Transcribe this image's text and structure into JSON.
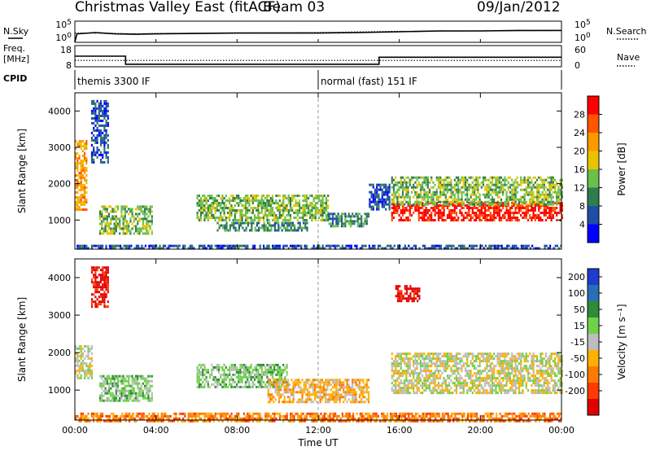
{
  "header": {
    "title": "Christmas Valley East (fitACF)",
    "beam": "Beam 03",
    "date": "09/Jan/2012"
  },
  "left_labels": {
    "nsky": "N.Sky",
    "freq": "Freq.",
    "freq_unit": "[MHz]",
    "cpid": "CPID"
  },
  "right_labels": {
    "nsearch": "N.Search",
    "nave": "Nave"
  },
  "cpid_modes": [
    {
      "label": "themis 3300 IF",
      "start_hour": 0
    },
    {
      "label": "normal (fast) 151 IF",
      "start_hour": 12
    }
  ],
  "colors": {
    "power_scale": [
      "#0000ff",
      "#1e4ea6",
      "#2e7d4f",
      "#6cbf4a",
      "#e8c400",
      "#ff9900",
      "#ff5500",
      "#ff0000"
    ],
    "velocity_scale": [
      "#1e3ccf",
      "#2a6fb5",
      "#2f8a3a",
      "#6fd14a",
      "#bdbdbd",
      "#ffb000",
      "#ff7a00",
      "#ff3a00",
      "#e00000"
    ]
  },
  "chart_data": [
    {
      "type": "line",
      "name": "noise",
      "y_ticks": [
        "10^5",
        "10^0"
      ],
      "y_ticks_right": [
        "10^5",
        "10^0"
      ],
      "series": [
        {
          "name": "N.Sky",
          "style": "solid",
          "x": [
            0.0,
            0.1,
            1.0,
            2.0,
            3.0,
            4.0,
            6.0,
            8.0,
            10.0,
            12.0,
            14.0,
            16.0,
            18.0,
            20.0,
            22.0,
            24.0
          ],
          "values": [
            0.1,
            2.0,
            2.3,
            2.0,
            1.9,
            2.0,
            2.1,
            2.2,
            2.2,
            2.2,
            2.3,
            2.5,
            2.7,
            2.7,
            2.8,
            2.8
          ]
        },
        {
          "name": "N.Search",
          "style": "dotted",
          "x": [
            0.0,
            1.0,
            3.0,
            4.0,
            8.0,
            12.0,
            16.0,
            20.0,
            24.0
          ],
          "values": [
            2.2,
            2.2,
            2.0,
            2.1,
            2.2,
            2.3,
            2.6,
            2.7,
            2.8
          ]
        }
      ]
    },
    {
      "type": "line",
      "name": "frequency",
      "y_ticks": [
        "18",
        "8"
      ],
      "y_ticks_right": [
        "60",
        "0"
      ],
      "series": [
        {
          "name": "Freq.",
          "style": "solid",
          "x": [
            0.0,
            2.5,
            2.5,
            15.0,
            15.0,
            24.0
          ],
          "values": [
            13.0,
            13.0,
            9.2,
            9.2,
            12.5,
            12.5
          ]
        },
        {
          "name": "Nave",
          "style": "dotted",
          "x": [
            0.0,
            24.0
          ],
          "values": [
            11.0,
            11.0
          ]
        }
      ]
    },
    {
      "type": "heatmap",
      "name": "power",
      "ylabel": "Slant Range [km]",
      "y_ticks": [
        1000,
        2000,
        3000,
        4000
      ],
      "ylim": [
        200,
        4500
      ],
      "colorbar_label": "Power [dB]",
      "colorbar_ticks": [
        4,
        8,
        12,
        16,
        20,
        24,
        28
      ],
      "echo_bands": [
        {
          "start": 0.0,
          "end": 0.6,
          "low": 1300,
          "high": 3200,
          "level": 5
        },
        {
          "start": 0.8,
          "end": 1.6,
          "low": 2600,
          "high": 4300,
          "level": 1
        },
        {
          "start": 1.2,
          "end": 3.8,
          "low": 600,
          "high": 1400,
          "level": 3
        },
        {
          "start": 6.0,
          "end": 12.5,
          "low": 1000,
          "high": 1700,
          "level": 3
        },
        {
          "start": 7.0,
          "end": 11.5,
          "low": 700,
          "high": 950,
          "level": 2
        },
        {
          "start": 12.5,
          "end": 14.5,
          "low": 800,
          "high": 1200,
          "level": 2
        },
        {
          "start": 14.5,
          "end": 15.5,
          "low": 1300,
          "high": 2000,
          "level": 1
        },
        {
          "start": 15.6,
          "end": 24.0,
          "low": 1000,
          "high": 1500,
          "level": 7
        },
        {
          "start": 15.6,
          "end": 24.0,
          "low": 1400,
          "high": 2200,
          "level": 3
        },
        {
          "start": 0.0,
          "end": 24.0,
          "low": 200,
          "high": 320,
          "level": 1
        }
      ]
    },
    {
      "type": "heatmap",
      "name": "velocity",
      "ylabel": "Slant Range [km]",
      "xlabel": "Time UT",
      "x_ticks": [
        "00:00",
        "04:00",
        "08:00",
        "12:00",
        "16:00",
        "20:00",
        "00:00"
      ],
      "y_ticks": [
        1000,
        2000,
        3000,
        4000
      ],
      "ylim": [
        200,
        4500
      ],
      "colorbar_label": "Velocity [m s⁻¹]",
      "colorbar_ticks": [
        200,
        100,
        50,
        15,
        -15,
        -50,
        -100,
        -200
      ],
      "echo_bands": [
        {
          "start": 0.0,
          "end": 0.8,
          "low": 1300,
          "high": 2200,
          "level": 4
        },
        {
          "start": 0.8,
          "end": 1.6,
          "low": 3200,
          "high": 4300,
          "level": 8
        },
        {
          "start": 1.2,
          "end": 3.8,
          "low": 700,
          "high": 1400,
          "level": 3
        },
        {
          "start": 6.0,
          "end": 10.5,
          "low": 1100,
          "high": 1700,
          "level": 3
        },
        {
          "start": 9.5,
          "end": 14.5,
          "low": 700,
          "high": 1300,
          "level": 5
        },
        {
          "start": 15.6,
          "end": 24.0,
          "low": 900,
          "high": 2000,
          "level": 4
        },
        {
          "start": 15.8,
          "end": 17.0,
          "low": 3400,
          "high": 3800,
          "level": 8
        },
        {
          "start": 0.0,
          "end": 24.0,
          "low": 200,
          "high": 400,
          "level": 6
        }
      ]
    }
  ]
}
